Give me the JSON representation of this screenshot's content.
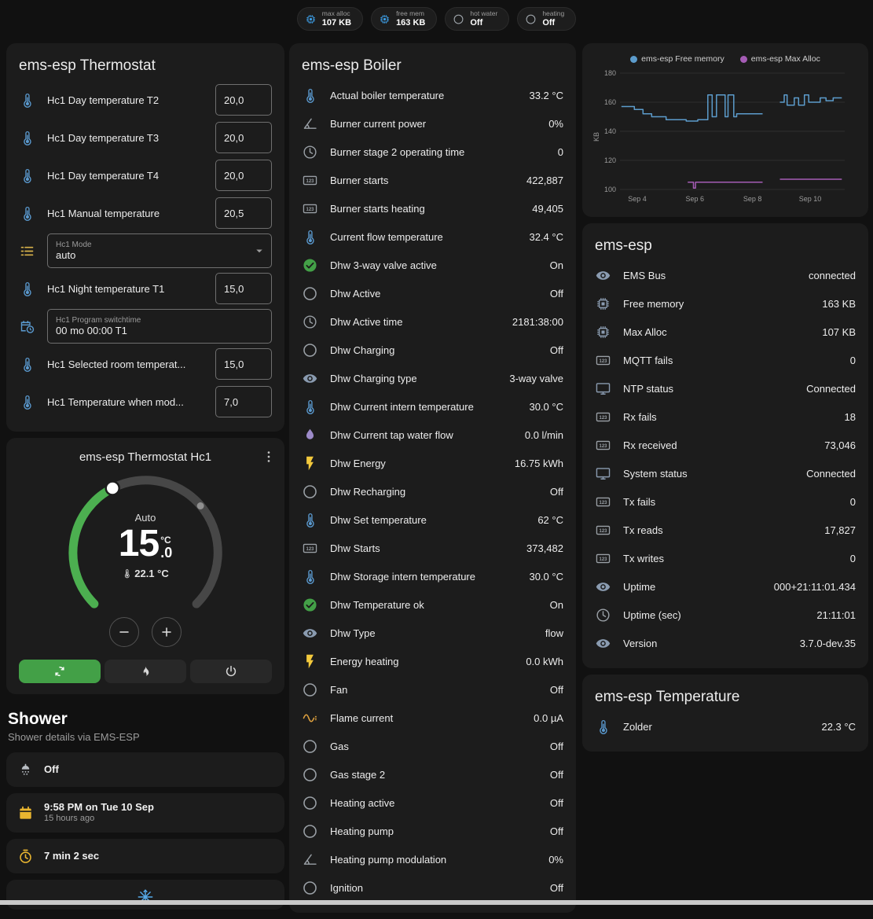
{
  "topbar": {
    "badges": [
      {
        "icon": "memory",
        "icon_color": "#3d9fe8",
        "label": "max alloc",
        "value": "107 KB"
      },
      {
        "icon": "memory",
        "icon_color": "#3d9fe8",
        "label": "free mem",
        "value": "163 KB"
      },
      {
        "icon": "circle-outline",
        "icon_color": "#9aa0a6",
        "label": "hot water",
        "value": "Off"
      },
      {
        "icon": "circle-outline",
        "icon_color": "#9aa0a6",
        "label": "heating",
        "value": "Off"
      }
    ]
  },
  "thermostat_card": {
    "title": "ems-esp Thermostat",
    "rows": [
      {
        "type": "number",
        "icon": "thermometer",
        "icon_color": "#5b9bd1",
        "label": "Hc1 Day temperature T2",
        "value": "20,0"
      },
      {
        "type": "number",
        "icon": "thermometer",
        "icon_color": "#5b9bd1",
        "label": "Hc1 Day temperature T3",
        "value": "20,0"
      },
      {
        "type": "number",
        "icon": "thermometer",
        "icon_color": "#5b9bd1",
        "label": "Hc1 Day temperature T4",
        "value": "20,0"
      },
      {
        "type": "number",
        "icon": "thermometer",
        "icon_color": "#5b9bd1",
        "label": "Hc1 Manual temperature",
        "value": "20,5"
      },
      {
        "type": "select",
        "icon": "list",
        "icon_color": "#d8b24a",
        "box_label": "Hc1 Mode",
        "value": "auto"
      },
      {
        "type": "number",
        "icon": "thermometer",
        "icon_color": "#5b9bd1",
        "label": "Hc1 Night temperature T1",
        "value": "15,0"
      },
      {
        "type": "text",
        "icon": "calendar-clock",
        "icon_color": "#5b9bd1",
        "box_label": "Hc1 Program switchtime",
        "value": "00 mo 00:00 T1"
      },
      {
        "type": "number",
        "icon": "thermometer",
        "icon_color": "#5b9bd1",
        "label": "Hc1 Selected room temperat...",
        "value": "15,0"
      },
      {
        "type": "number",
        "icon": "thermometer",
        "icon_color": "#5b9bd1",
        "label": "Hc1 Temperature when mod...",
        "value": "7,0"
      }
    ]
  },
  "hc1_card": {
    "title": "ems-esp Thermostat Hc1",
    "menu_icon": "dots-vertical",
    "mode_label": "Auto",
    "target_int": "15",
    "target_frac": ".0",
    "unit": "°C",
    "current_temp": "22.1 °C",
    "current_icon": "thermometer",
    "dial": {
      "min": 5,
      "max": 30,
      "target": 15.0,
      "current": 22.1,
      "accent": "#4caf50",
      "track": "#474747"
    },
    "stepper": [
      {
        "icon": "minus",
        "name": "decrease-temperature"
      },
      {
        "icon": "plus",
        "name": "increase-temperature"
      }
    ],
    "modes": [
      {
        "icon": "auto-mode",
        "name": "auto",
        "active": true,
        "color": "#43a047"
      },
      {
        "icon": "flame",
        "name": "heat",
        "active": false
      },
      {
        "icon": "power",
        "name": "off",
        "active": false
      }
    ]
  },
  "shower": {
    "title": "Shower",
    "subtitle": "Shower details via EMS-ESP",
    "items": [
      {
        "icon": "shower",
        "icon_color": "#b8bdc3",
        "primary": "Off"
      },
      {
        "icon": "calendar",
        "icon_color": "#eab630",
        "primary": "9:58 PM on Tue 10 Sep",
        "secondary": "15 hours ago"
      },
      {
        "icon": "timer",
        "icon_color": "#eab630",
        "primary": "7 min 2 sec"
      }
    ],
    "partial_icon": "snowflake",
    "partial_icon_color": "#55a9e8"
  },
  "boiler_card": {
    "title": "ems-esp Boiler",
    "rows": [
      {
        "icon": "thermometer",
        "icon_color": "#5b9bd1",
        "label": "Actual boiler temperature",
        "value": "33.2 °C"
      },
      {
        "icon": "angle",
        "icon_color": "#9aa0a6",
        "label": "Burner current power",
        "value": "0%"
      },
      {
        "icon": "clock",
        "icon_color": "#9aa0a6",
        "label": "Burner stage 2 operating time",
        "value": "0"
      },
      {
        "icon": "counter",
        "icon_color": "#9aa0a6",
        "label": "Burner starts",
        "value": "422,887"
      },
      {
        "icon": "counter",
        "icon_color": "#9aa0a6",
        "label": "Burner starts heating",
        "value": "49,405"
      },
      {
        "icon": "thermometer",
        "icon_color": "#5b9bd1",
        "label": "Current flow temperature",
        "value": "32.4 °C"
      },
      {
        "icon": "check-circle",
        "icon_color": "#43a047",
        "label": "Dhw 3-way valve active",
        "value": "On"
      },
      {
        "icon": "circle-outline",
        "icon_color": "#9aa0a6",
        "label": "Dhw Active",
        "value": "Off"
      },
      {
        "icon": "clock",
        "icon_color": "#9aa0a6",
        "label": "Dhw Active time",
        "value": "2181:38:00"
      },
      {
        "icon": "circle-outline",
        "icon_color": "#9aa0a6",
        "label": "Dhw Charging",
        "value": "Off"
      },
      {
        "icon": "eye",
        "icon_color": "#8a9bb0",
        "label": "Dhw Charging type",
        "value": "3-way valve"
      },
      {
        "icon": "thermometer",
        "icon_color": "#5b9bd1",
        "label": "Dhw Current intern temperature",
        "value": "30.0 °C"
      },
      {
        "icon": "water",
        "icon_color": "#9d8bc9",
        "label": "Dhw Current tap water flow",
        "value": "0.0 l/min"
      },
      {
        "icon": "flash",
        "icon_color": "#f3c93c",
        "label": "Dhw Energy",
        "value": "16.75 kWh"
      },
      {
        "icon": "circle-outline",
        "icon_color": "#9aa0a6",
        "label": "Dhw Recharging",
        "value": "Off"
      },
      {
        "icon": "thermometer",
        "icon_color": "#5b9bd1",
        "label": "Dhw Set temperature",
        "value": "62 °C"
      },
      {
        "icon": "counter",
        "icon_color": "#9aa0a6",
        "label": "Dhw Starts",
        "value": "373,482"
      },
      {
        "icon": "thermometer",
        "icon_color": "#5b9bd1",
        "label": "Dhw Storage intern temperature",
        "value": "30.0 °C"
      },
      {
        "icon": "check-circle",
        "icon_color": "#43a047",
        "label": "Dhw Temperature ok",
        "value": "On"
      },
      {
        "icon": "eye",
        "icon_color": "#8a9bb0",
        "label": "Dhw Type",
        "value": "flow"
      },
      {
        "icon": "flash",
        "icon_color": "#f3c93c",
        "label": "Energy heating",
        "value": "0.0 kWh"
      },
      {
        "icon": "circle-outline",
        "icon_color": "#9aa0a6",
        "label": "Fan",
        "value": "Off"
      },
      {
        "icon": "sine",
        "icon_color": "#e0a23f",
        "label": "Flame current",
        "value": "0.0 µA"
      },
      {
        "icon": "circle-outline",
        "icon_color": "#9aa0a6",
        "label": "Gas",
        "value": "Off"
      },
      {
        "icon": "circle-outline",
        "icon_color": "#9aa0a6",
        "label": "Gas stage 2",
        "value": "Off"
      },
      {
        "icon": "circle-outline",
        "icon_color": "#9aa0a6",
        "label": "Heating active",
        "value": "Off"
      },
      {
        "icon": "circle-outline",
        "icon_color": "#9aa0a6",
        "label": "Heating pump",
        "value": "Off"
      },
      {
        "icon": "angle",
        "icon_color": "#9aa0a6",
        "label": "Heating pump modulation",
        "value": "0%"
      },
      {
        "icon": "circle-outline",
        "icon_color": "#9aa0a6",
        "label": "Ignition",
        "value": "Off"
      }
    ]
  },
  "emsesp_card": {
    "title": "ems-esp",
    "rows": [
      {
        "icon": "eye",
        "icon_color": "#8a9bb0",
        "label": "EMS Bus",
        "value": "connected"
      },
      {
        "icon": "memory",
        "icon_color": "#8a9bb0",
        "label": "Free memory",
        "value": "163 KB"
      },
      {
        "icon": "memory",
        "icon_color": "#8a9bb0",
        "label": "Max Alloc",
        "value": "107 KB"
      },
      {
        "icon": "counter",
        "icon_color": "#9aa0a6",
        "label": "MQTT fails",
        "value": "0"
      },
      {
        "icon": "monitor",
        "icon_color": "#8a9bb0",
        "label": "NTP status",
        "value": "Connected"
      },
      {
        "icon": "counter",
        "icon_color": "#9aa0a6",
        "label": "Rx fails",
        "value": "18"
      },
      {
        "icon": "counter",
        "icon_color": "#9aa0a6",
        "label": "Rx received",
        "value": "73,046"
      },
      {
        "icon": "monitor",
        "icon_color": "#8a9bb0",
        "label": "System status",
        "value": "Connected"
      },
      {
        "icon": "counter",
        "icon_color": "#9aa0a6",
        "label": "Tx fails",
        "value": "0"
      },
      {
        "icon": "counter",
        "icon_color": "#9aa0a6",
        "label": "Tx reads",
        "value": "17,827"
      },
      {
        "icon": "counter",
        "icon_color": "#9aa0a6",
        "label": "Tx writes",
        "value": "0"
      },
      {
        "icon": "eye",
        "icon_color": "#8a9bb0",
        "label": "Uptime",
        "value": "000+21:11:01.434"
      },
      {
        "icon": "clock",
        "icon_color": "#9aa0a6",
        "label": "Uptime (sec)",
        "value": "21:11:01"
      },
      {
        "icon": "eye",
        "icon_color": "#8a9bb0",
        "label": "Version",
        "value": "3.7.0-dev.35"
      }
    ]
  },
  "temp_card": {
    "title": "ems-esp Temperature",
    "rows": [
      {
        "icon": "thermometer",
        "icon_color": "#5b9bd1",
        "label": "Zolder",
        "value": "22.3 °C"
      }
    ]
  },
  "chart_data": {
    "type": "line",
    "title": "",
    "xlabel": "",
    "ylabel": "KB",
    "ylim": [
      100,
      180
    ],
    "yticks": [
      100,
      120,
      140,
      160,
      180
    ],
    "xlim": [
      3.4,
      11.2
    ],
    "xticks": [
      {
        "x": 4,
        "label": "Sep 4"
      },
      {
        "x": 6,
        "label": "Sep 6"
      },
      {
        "x": 8,
        "label": "Sep 8"
      },
      {
        "x": 10,
        "label": "Sep 10"
      }
    ],
    "grid": true,
    "legend_position": "top",
    "series": [
      {
        "name": "ems-esp Free memory",
        "color": "#5c9ccc",
        "points": [
          [
            3.45,
            157
          ],
          [
            3.9,
            157
          ],
          [
            3.9,
            155
          ],
          [
            4.2,
            155
          ],
          [
            4.2,
            152
          ],
          [
            4.5,
            152
          ],
          [
            4.5,
            150
          ],
          [
            5.0,
            150
          ],
          [
            5.0,
            148
          ],
          [
            5.7,
            148
          ],
          [
            5.7,
            147
          ],
          [
            6.1,
            147
          ],
          [
            6.1,
            148
          ],
          [
            6.45,
            148
          ],
          [
            6.45,
            165
          ],
          [
            6.6,
            165
          ],
          [
            6.6,
            150
          ],
          [
            6.75,
            150
          ],
          [
            6.75,
            165
          ],
          [
            7.05,
            165
          ],
          [
            7.05,
            150
          ],
          [
            7.15,
            150
          ],
          [
            7.15,
            165
          ],
          [
            7.35,
            165
          ],
          [
            7.35,
            150
          ],
          [
            7.45,
            150
          ],
          [
            7.45,
            152
          ],
          [
            8.35,
            152
          ],
          null,
          [
            8.95,
            160
          ],
          [
            9.1,
            160
          ],
          [
            9.1,
            165
          ],
          [
            9.2,
            165
          ],
          [
            9.2,
            158
          ],
          [
            9.45,
            158
          ],
          [
            9.45,
            163
          ],
          [
            9.6,
            163
          ],
          [
            9.6,
            158
          ],
          [
            9.8,
            158
          ],
          [
            9.8,
            165
          ],
          [
            9.95,
            165
          ],
          [
            9.95,
            160
          ],
          [
            10.35,
            160
          ],
          [
            10.35,
            163
          ],
          [
            10.55,
            163
          ],
          [
            10.55,
            161
          ],
          [
            10.8,
            161
          ],
          [
            10.8,
            163
          ],
          [
            11.1,
            163
          ]
        ]
      },
      {
        "name": "ems-esp Max Alloc",
        "color": "#a55cb5",
        "points": [
          [
            5.75,
            105
          ],
          [
            5.95,
            105
          ],
          [
            5.95,
            101
          ],
          [
            6.02,
            101
          ],
          [
            6.02,
            105
          ],
          [
            8.35,
            105
          ],
          null,
          [
            8.95,
            107
          ],
          [
            11.1,
            107
          ]
        ]
      }
    ]
  }
}
